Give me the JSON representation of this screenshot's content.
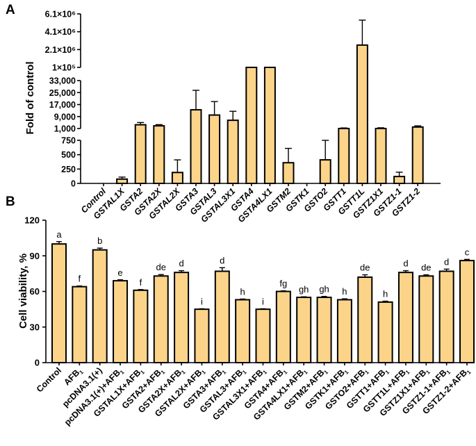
{
  "colors": {
    "bar_fill": "#FBD48A",
    "bar_stroke": "#000000",
    "background": "#FFFFFF"
  },
  "chart_data": [
    {
      "panel": "A",
      "type": "bar",
      "ylabel": "Fold of control",
      "y_axis_broken": true,
      "yticks": [
        "0",
        "250",
        "500",
        "750",
        "1,000",
        "9,000",
        "17,000",
        "25,000",
        "33,000",
        "1×10⁵",
        "2.1×10⁶",
        "4.1×10⁶",
        "6.1×10⁶"
      ],
      "ylim": [
        0,
        6100000
      ],
      "categories": [
        "Control",
        "GSTAL1X",
        "GSTA2",
        "GSTA2X",
        "GSTAL2X",
        "GSTA3",
        "GSTAL3",
        "GSTAL3X1",
        "GSTA4",
        "GSTA4LX1",
        "GSTM2",
        "GSTK1",
        "GSTO2",
        "GSTT1",
        "GSTT1L",
        "GSTZ1X1",
        "GSTZ1-1",
        "GSTZ1-2"
      ],
      "values": [
        0,
        75,
        3500,
        2800,
        190,
        13500,
        10000,
        6500,
        100000,
        100000,
        360,
        0,
        410,
        1000,
        2600000,
        1000,
        120,
        2000
      ],
      "errors": [
        0,
        35,
        1500,
        800,
        220,
        13000,
        9000,
        6000,
        10000,
        3000,
        250,
        0,
        340,
        400,
        2800000,
        500,
        75,
        800
      ]
    },
    {
      "panel": "B",
      "type": "bar",
      "ylabel": "Cell viability, %",
      "ylim": [
        0,
        120
      ],
      "yticks": [
        "0",
        "30",
        "60",
        "90",
        "120"
      ],
      "categories": [
        "Control",
        "AFB₁",
        "pcDNA3.1(+)",
        "pcDNA3.1(+)+AFB₁",
        "GSTAL1X+AFB₁",
        "GSTA2+AFB₁",
        "GSTA2X+AFB₁",
        "GSTAL2X+AFB₁",
        "GSTA3+AFB₁",
        "GSTAL3+AFB₁",
        "GSTAL3X1+AFB₁",
        "GSTA4+AFB₁",
        "GSTA4LX1+AFB₁",
        "GSTM2+AFB₁",
        "GSTK1+AFB₁",
        "GSTO2+AFB₁",
        "GSTT1+AFB₁",
        "GSTT1L+AFB₁",
        "GSTZ1X1+AFB₁",
        "GSTZ1-1+AFB₁",
        "GSTZ1-2+AFB₁"
      ],
      "values": [
        100,
        64,
        95,
        69,
        61,
        73,
        76,
        45,
        77,
        53,
        45,
        60,
        55,
        55,
        53,
        72,
        51,
        76,
        73,
        77,
        86
      ],
      "errors": [
        2.0,
        0.6,
        1.5,
        0.8,
        0.6,
        1.2,
        1.5,
        0.4,
        3.0,
        0.6,
        0.4,
        0.5,
        0.5,
        0.8,
        0.8,
        2.0,
        0.8,
        1.5,
        1.0,
        1.8,
        1.0
      ],
      "significance_letters": [
        "a",
        "f",
        "b",
        "e",
        "f",
        "de",
        "d",
        "i",
        "d",
        "h",
        "i",
        "fg",
        "gh",
        "gh",
        "h",
        "de",
        "h",
        "d",
        "de",
        "d",
        "c"
      ]
    }
  ]
}
